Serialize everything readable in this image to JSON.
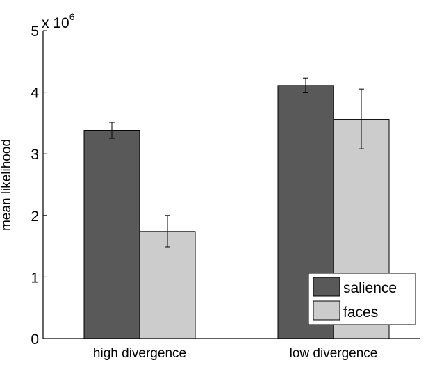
{
  "chart_data": {
    "type": "bar",
    "title": "",
    "ylabel": "mean likelihood",
    "xlabel": "",
    "y_exponent_label": "x 10",
    "y_exponent": "6",
    "ylim": [
      0,
      5000000
    ],
    "yticks": [
      0,
      1,
      2,
      3,
      4,
      5
    ],
    "categories": [
      "high divergence",
      "low divergence"
    ],
    "series": [
      {
        "name": "salience",
        "color": "#595959",
        "values": [
          3380000,
          4110000
        ],
        "err_low": [
          3250000,
          3990000
        ],
        "err_high": [
          3510000,
          4230000
        ]
      },
      {
        "name": "faces",
        "color": "#cccccc",
        "values": [
          1740000,
          3560000
        ],
        "err_low": [
          1490000,
          3080000
        ],
        "err_high": [
          2000000,
          4050000
        ]
      }
    ],
    "grid": false,
    "legend_position": "bottom-right"
  }
}
